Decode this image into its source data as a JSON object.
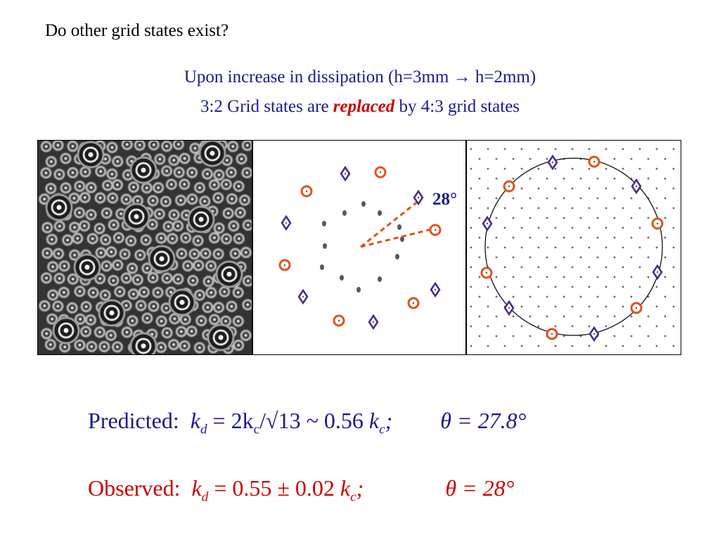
{
  "slide": {
    "question": "Do other grid states exist?",
    "subtitle_line1": "Upon increase in dissipation (h=3mm → h=2mm)",
    "subtitle_line2_pre": "3:2 Grid states are ",
    "subtitle_line2_emph": "replaced",
    "subtitle_line2_post": " by 4:3 grid states",
    "angle_label": "28°",
    "predicted": {
      "label": "Predicted:",
      "k": "k",
      "k_sub": "d",
      "eq_mid": " = 2k",
      "kc_sub": "c",
      "eq_mid2": "/√13 ~ 0.56 ",
      "k2": "k",
      "k2_sub": "c",
      "semi": ";",
      "theta": "θ",
      "theta_val": " = 27.8°"
    },
    "observed": {
      "label": "Observed:",
      "k": "k",
      "k_sub": "d",
      "eq_mid": " = 0.55 ± 0.02 ",
      "k2": "k",
      "k2_sub": "c",
      "semi": ";",
      "theta": "θ",
      "theta_val": " = 28°"
    }
  },
  "colors": {
    "title_blue": "#1a1a8c",
    "accent_red": "#cc0000",
    "circle_marker": "#e0521e",
    "diamond_marker": "#4b2a8a"
  },
  "figures": {
    "photo": {
      "description_icon": "grid-state-photo"
    },
    "fft": {
      "description_icon": "fourier-spectrum"
    },
    "lattice": {
      "description_icon": "reciprocal-lattice"
    }
  }
}
